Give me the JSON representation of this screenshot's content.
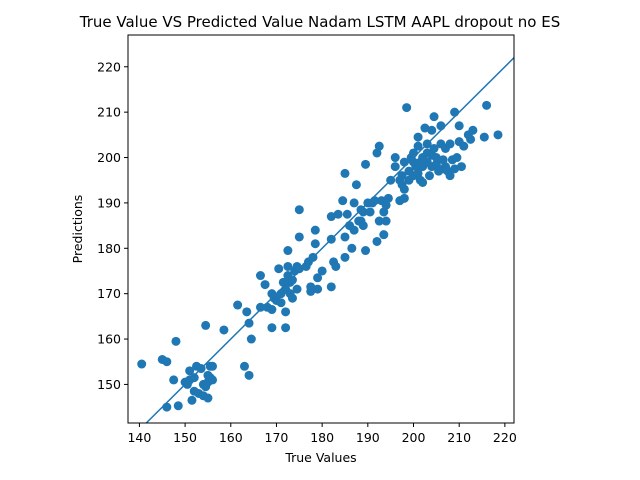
{
  "chart_data": {
    "type": "scatter",
    "title": "True Value VS Predicted Value  Nadam LSTM AAPL dropout no ES",
    "xlabel": "True Values",
    "ylabel": "Predictions",
    "xlim": [
      137.5,
      222
    ],
    "ylim": [
      141.5,
      227
    ],
    "xticks": [
      140,
      150,
      160,
      170,
      180,
      190,
      200,
      210,
      220
    ],
    "yticks": [
      150,
      160,
      170,
      180,
      190,
      200,
      210,
      220
    ],
    "identity_line": true,
    "marker_color": "#1f77b4",
    "line_color": "#1f77b4",
    "points": [
      [
        140.5,
        154.5
      ],
      [
        145,
        155.5
      ],
      [
        146,
        155
      ],
      [
        146,
        145
      ],
      [
        147.5,
        151
      ],
      [
        148,
        159.5
      ],
      [
        148.5,
        145.3
      ],
      [
        150,
        150.5
      ],
      [
        150.5,
        150
      ],
      [
        151,
        151
      ],
      [
        151,
        153
      ],
      [
        151.5,
        146.5
      ],
      [
        152,
        148.5
      ],
      [
        152,
        151.5
      ],
      [
        152.5,
        154
      ],
      [
        153,
        148
      ],
      [
        153.5,
        153.5
      ],
      [
        154,
        147.5
      ],
      [
        154,
        150
      ],
      [
        154.5,
        149.5
      ],
      [
        154.5,
        163
      ],
      [
        155,
        152
      ],
      [
        155,
        147
      ],
      [
        155,
        150.5
      ],
      [
        155.5,
        151.5
      ],
      [
        155.5,
        154
      ],
      [
        156,
        154
      ],
      [
        156,
        151
      ],
      [
        158.5,
        162
      ],
      [
        161.5,
        167.5
      ],
      [
        163,
        154
      ],
      [
        163.5,
        166
      ],
      [
        164,
        163.5
      ],
      [
        164,
        152
      ],
      [
        164.5,
        160
      ],
      [
        166.5,
        174
      ],
      [
        166.5,
        167
      ],
      [
        167.5,
        172
      ],
      [
        168,
        167
      ],
      [
        169,
        166.5
      ],
      [
        169,
        162.5
      ],
      [
        169,
        170
      ],
      [
        169.5,
        169
      ],
      [
        170,
        168.5
      ],
      [
        170.5,
        175.5
      ],
      [
        171,
        170
      ],
      [
        171,
        168
      ],
      [
        171.5,
        172.5
      ],
      [
        172,
        166
      ],
      [
        172,
        162.5
      ],
      [
        172,
        171
      ],
      [
        172.5,
        174
      ],
      [
        172.5,
        176
      ],
      [
        172.5,
        179.5
      ],
      [
        173,
        172.5
      ],
      [
        173,
        170
      ],
      [
        173.5,
        169
      ],
      [
        173.5,
        173
      ],
      [
        174,
        175
      ],
      [
        174.5,
        176
      ],
      [
        174.5,
        171
      ],
      [
        175,
        188.5
      ],
      [
        175,
        182.5
      ],
      [
        175,
        175.5
      ],
      [
        176.5,
        176
      ],
      [
        177,
        177
      ],
      [
        177.5,
        170.5
      ],
      [
        177.5,
        171.5
      ],
      [
        178,
        178
      ],
      [
        178.5,
        181
      ],
      [
        178.5,
        184
      ],
      [
        179,
        171
      ],
      [
        179,
        173.5
      ],
      [
        180,
        175
      ],
      [
        182,
        171.5
      ],
      [
        182,
        182
      ],
      [
        182,
        187
      ],
      [
        182.5,
        177
      ],
      [
        183,
        176
      ],
      [
        183.5,
        187.5
      ],
      [
        184.5,
        190.5
      ],
      [
        185,
        182.5
      ],
      [
        185,
        178
      ],
      [
        185,
        196.5
      ],
      [
        185.5,
        187.5
      ],
      [
        186,
        185
      ],
      [
        186.5,
        180
      ],
      [
        187,
        184
      ],
      [
        187,
        190
      ],
      [
        187.5,
        194
      ],
      [
        188,
        186
      ],
      [
        188.5,
        186
      ],
      [
        188.5,
        188.5
      ],
      [
        189,
        188
      ],
      [
        189,
        185
      ],
      [
        189.5,
        179.5
      ],
      [
        189.5,
        198.5
      ],
      [
        190,
        190
      ],
      [
        190.5,
        188
      ],
      [
        191,
        190
      ],
      [
        191.5,
        190.5
      ],
      [
        192,
        201
      ],
      [
        192,
        181.5
      ],
      [
        192.5,
        202.5
      ],
      [
        192.5,
        186
      ],
      [
        193,
        190.5
      ],
      [
        193.5,
        188
      ],
      [
        193.5,
        183
      ],
      [
        194,
        189.5
      ],
      [
        194,
        186
      ],
      [
        194.5,
        191
      ],
      [
        195,
        195
      ],
      [
        196,
        200
      ],
      [
        196,
        198
      ],
      [
        197,
        190.5
      ],
      [
        197,
        195
      ],
      [
        197.5,
        194
      ],
      [
        197.5,
        196
      ],
      [
        198,
        199
      ],
      [
        198,
        191
      ],
      [
        198,
        193
      ],
      [
        198.5,
        211
      ],
      [
        199,
        195
      ],
      [
        199,
        197
      ],
      [
        199.5,
        200
      ],
      [
        200,
        199
      ],
      [
        200,
        201
      ],
      [
        200,
        196
      ],
      [
        200.5,
        198
      ],
      [
        201,
        196.5
      ],
      [
        201,
        202.5
      ],
      [
        201,
        204.5
      ],
      [
        201.5,
        195
      ],
      [
        201.5,
        199
      ],
      [
        202,
        200
      ],
      [
        202,
        198
      ],
      [
        202,
        194.5
      ],
      [
        202.5,
        206.5
      ],
      [
        203,
        201
      ],
      [
        203,
        203
      ],
      [
        203,
        199
      ],
      [
        203.5,
        196
      ],
      [
        204,
        198
      ],
      [
        204,
        206
      ],
      [
        204,
        200.5
      ],
      [
        204.5,
        202
      ],
      [
        204.5,
        209
      ],
      [
        205,
        198.5
      ],
      [
        205,
        200
      ],
      [
        205.5,
        197
      ],
      [
        206,
        203
      ],
      [
        206,
        207
      ],
      [
        206.5,
        197.5
      ],
      [
        206.5,
        199.5
      ],
      [
        207,
        198
      ],
      [
        207,
        202
      ],
      [
        207.5,
        197
      ],
      [
        208,
        203
      ],
      [
        208,
        196
      ],
      [
        208.5,
        199.5
      ],
      [
        209,
        210
      ],
      [
        209,
        197.5
      ],
      [
        209.5,
        200
      ],
      [
        210,
        207
      ],
      [
        210,
        203.5
      ],
      [
        210.5,
        198
      ],
      [
        211,
        202.5
      ],
      [
        212,
        205
      ],
      [
        212.5,
        204
      ],
      [
        213,
        206
      ],
      [
        215.5,
        204.5
      ],
      [
        216,
        211.5
      ],
      [
        218.5,
        205
      ]
    ]
  }
}
